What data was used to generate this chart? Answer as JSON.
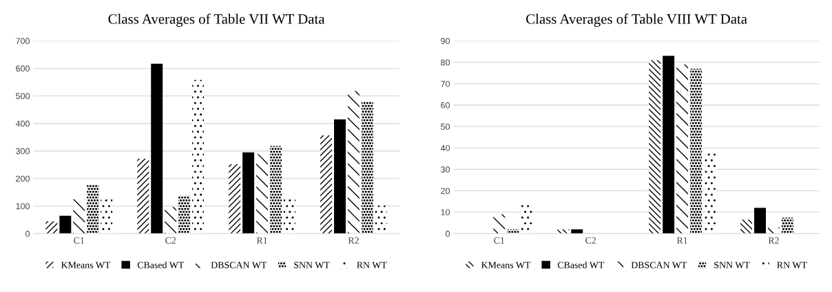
{
  "chart_data": [
    {
      "type": "bar",
      "title": "Class Averages of Table VII WT Data",
      "categories": [
        "C1",
        "C2",
        "R1",
        "R2"
      ],
      "ylim": [
        0,
        700
      ],
      "yticks": [
        0,
        100,
        200,
        300,
        400,
        500,
        600,
        700
      ],
      "grid": "y",
      "legend": "bottom",
      "series": [
        {
          "name": "KMeans WT",
          "color": "#000000",
          "values": [
            45,
            272,
            252,
            357
          ]
        },
        {
          "name": "CBased WT",
          "color": "#000000",
          "values": [
            65,
            617,
            295,
            415
          ]
        },
        {
          "name": "DBSCAN WT",
          "color": "#000000",
          "values": [
            125,
            97,
            288,
            518
          ]
        },
        {
          "name": "SNN WT",
          "color": "#000000",
          "values": [
            178,
            138,
            318,
            480
          ]
        },
        {
          "name": "RN WT",
          "color": "#000000",
          "values": [
            128,
            558,
            128,
            102
          ]
        }
      ]
    },
    {
      "type": "bar",
      "title": "Class Averages of Table VIII WT Data",
      "categories": [
        "C1",
        "C2",
        "R1",
        "R2"
      ],
      "ylim": [
        0,
        90
      ],
      "yticks": [
        0,
        10,
        20,
        30,
        40,
        50,
        60,
        70,
        80,
        90
      ],
      "grid": "y",
      "legend": "bottom",
      "series": [
        {
          "name": "KMeans WT",
          "color": "#000000",
          "values": [
            0,
            2,
            81,
            6.5
          ]
        },
        {
          "name": "CBased WT",
          "color": "#000000",
          "values": [
            0,
            2,
            83,
            12
          ]
        },
        {
          "name": "DBSCAN WT",
          "color": "#000000",
          "values": [
            9,
            0,
            79,
            3
          ]
        },
        {
          "name": "SNN WT",
          "color": "#000000",
          "values": [
            2,
            0,
            77,
            7.5
          ]
        },
        {
          "name": "RN WT",
          "color": "#000000",
          "values": [
            14,
            0,
            39,
            0
          ]
        }
      ]
    }
  ]
}
